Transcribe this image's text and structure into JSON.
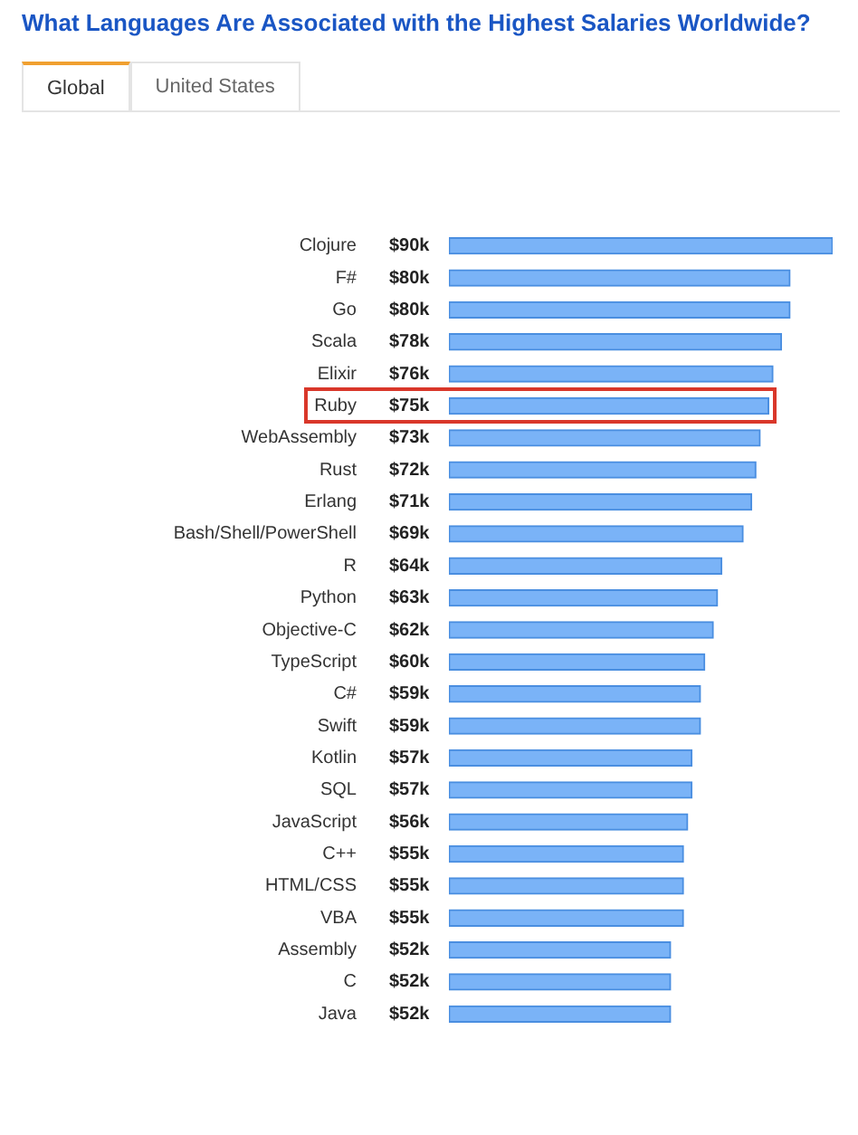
{
  "chart_data": {
    "type": "bar",
    "orientation": "horizontal",
    "title": "What Languages Are Associated with the Highest Salaries Worldwide?",
    "annotations": [
      "Global",
      "United States"
    ],
    "categories": [
      "Clojure",
      "F#",
      "Go",
      "Scala",
      "Elixir",
      "Ruby",
      "WebAssembly",
      "Rust",
      "Erlang",
      "Bash/Shell/PowerShell",
      "R",
      "Python",
      "Objective-C",
      "TypeScript",
      "C#",
      "Swift",
      "Kotlin",
      "SQL",
      "JavaScript",
      "C++",
      "HTML/CSS",
      "VBA",
      "Assembly",
      "C",
      "Java"
    ],
    "values": [
      90,
      80,
      80,
      78,
      76,
      75,
      73,
      72,
      71,
      69,
      64,
      63,
      62,
      60,
      59,
      59,
      57,
      57,
      56,
      55,
      55,
      55,
      52,
      52,
      52
    ],
    "value_labels": [
      "$90k",
      "$80k",
      "$80k",
      "$78k",
      "$76k",
      "$75k",
      "$73k",
      "$72k",
      "$71k",
      "$69k",
      "$64k",
      "$63k",
      "$62k",
      "$60k",
      "$59k",
      "$59k",
      "$57k",
      "$57k",
      "$56k",
      "$55k",
      "$55k",
      "$55k",
      "$52k",
      "$52k",
      "$52k"
    ],
    "color": "#7ab3f7",
    "grid": false,
    "legend": false
  }
}
